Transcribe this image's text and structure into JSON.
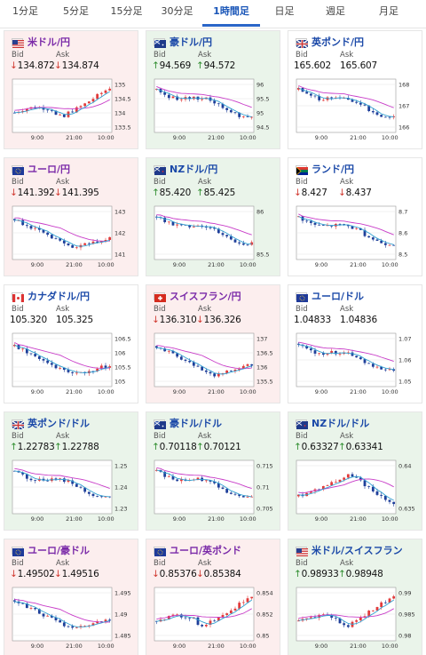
{
  "tabs": [
    "1分足",
    "5分足",
    "15分足",
    "30分足",
    "1時間足",
    "日足",
    "週足",
    "月足"
  ],
  "active_tab": 4,
  "labels": {
    "bid": "Bid",
    "ask": "Ask"
  },
  "colors": {
    "down_bg": "#fceeee",
    "up_bg": "#eaf4ea",
    "candle_up": "#e23b3b",
    "candle_down": "#1f3f9a",
    "ma1": "#c83cc8",
    "ma2": "#30a0d0",
    "price_down": "#d0372e",
    "price_up": "#2c8c2c"
  },
  "cards": [
    {
      "name": "米ドル/円",
      "flag": "us-jp",
      "trend": "down",
      "bid": "134.872",
      "ask": "134.874",
      "dir": "down",
      "yticks": [
        "135",
        "134.5",
        "134",
        "133.5"
      ],
      "xticks": [
        "9:00",
        "21:00",
        "10:00"
      ],
      "shape": "rise"
    },
    {
      "name": "豪ドル/円",
      "flag": "au-jp",
      "trend": "up",
      "bid": "94.569",
      "ask": "94.572",
      "dir": "up",
      "yticks": [
        "96",
        "95.5",
        "95",
        "94.5"
      ],
      "xticks": [
        "9:00",
        "21:00",
        "10:00"
      ],
      "shape": "fall"
    },
    {
      "name": "英ポンド/円",
      "flag": "gb-jp",
      "trend": "flat",
      "bid": "165.602",
      "ask": "165.607",
      "dir": "none",
      "yticks": [
        "168",
        "167",
        "166"
      ],
      "xticks": [
        "9:00",
        "21:00",
        "10:00"
      ],
      "shape": "fall"
    },
    {
      "name": "ユーロ/円",
      "flag": "eu-jp",
      "trend": "down",
      "bid": "141.392",
      "ask": "141.395",
      "dir": "down",
      "yticks": [
        "143",
        "142",
        "141"
      ],
      "xticks": [
        "9:00",
        "21:00",
        "10:00"
      ],
      "shape": "dip"
    },
    {
      "name": "NZドル/円",
      "flag": "nz-jp",
      "trend": "up",
      "bid": "85.420",
      "ask": "85.425",
      "dir": "up",
      "yticks": [
        "86",
        "85.5"
      ],
      "xticks": [
        "9:00",
        "21:00",
        "10:00"
      ],
      "shape": "fall"
    },
    {
      "name": "ランド/円",
      "flag": "za-jp",
      "trend": "flat",
      "bid": "8.427",
      "ask": "8.437",
      "dir": "down",
      "yticks": [
        "8.7",
        "8.6",
        "8.5"
      ],
      "xticks": [
        "9:00",
        "21:00",
        "10:00"
      ],
      "shape": "fall"
    },
    {
      "name": "カナダドル/円",
      "flag": "ca-jp",
      "trend": "flat",
      "bid": "105.320",
      "ask": "105.325",
      "dir": "none",
      "yticks": [
        "106.5",
        "106",
        "105.5",
        "105"
      ],
      "xticks": [
        "9:00",
        "21:00",
        "10:00"
      ],
      "shape": "dip"
    },
    {
      "name": "スイスフラン/円",
      "flag": "ch-jp",
      "trend": "down",
      "bid": "136.310",
      "ask": "136.326",
      "dir": "down",
      "yticks": [
        "137",
        "136.5",
        "136",
        "135.5"
      ],
      "xticks": [
        "9:00",
        "21:00",
        "10:00"
      ],
      "shape": "dip"
    },
    {
      "name": "ユーロ/ドル",
      "flag": "eu-us",
      "trend": "flat",
      "bid": "1.04833",
      "ask": "1.04836",
      "dir": "none",
      "yticks": [
        "1.07",
        "1.06",
        "1.05"
      ],
      "xticks": [
        "9:00",
        "21:00",
        "10:00"
      ],
      "shape": "fall"
    },
    {
      "name": "英ポンド/ドル",
      "flag": "gb-us",
      "trend": "up",
      "bid": "1.22783",
      "ask": "1.22788",
      "dir": "up",
      "yticks": [
        "1.25",
        "1.24",
        "1.23"
      ],
      "xticks": [
        "9:00",
        "21:00",
        "10:00"
      ],
      "shape": "fall"
    },
    {
      "name": "豪ドル/ドル",
      "flag": "au-us",
      "trend": "up",
      "bid": "0.70118",
      "ask": "0.70121",
      "dir": "up",
      "yticks": [
        "0.715",
        "0.71",
        "0.705"
      ],
      "xticks": [
        "9:00",
        "21:00",
        "10:00"
      ],
      "shape": "fall"
    },
    {
      "name": "NZドル/ドル",
      "flag": "nz-us",
      "trend": "up",
      "bid": "0.63327",
      "ask": "0.63341",
      "dir": "up",
      "yticks": [
        "0.64",
        "0.635"
      ],
      "xticks": [
        "9:00",
        "21:00",
        "10:00"
      ],
      "shape": "hump"
    },
    {
      "name": "ユーロ/豪ドル",
      "flag": "eu-au",
      "trend": "down",
      "bid": "1.49502",
      "ask": "1.49516",
      "dir": "down",
      "yticks": [
        "1.495",
        "1.49",
        "1.485"
      ],
      "xticks": [
        "9:00",
        "21:00",
        "10:00"
      ],
      "shape": "dip"
    },
    {
      "name": "ユーロ/英ポンド",
      "flag": "eu-gb",
      "trend": "down",
      "bid": "0.85376",
      "ask": "0.85384",
      "dir": "down",
      "yticks": [
        "0.854",
        "0.852",
        "0.85"
      ],
      "xticks": [
        "9:00",
        "21:00",
        "10:00"
      ],
      "shape": "rise"
    },
    {
      "name": "米ドル/スイスフラン",
      "flag": "us-ch",
      "trend": "up",
      "bid": "0.98933",
      "ask": "0.98948",
      "dir": "up",
      "yticks": [
        "0.99",
        "0.985",
        "0.98"
      ],
      "xticks": [
        "9:00",
        "21:00",
        "10:00"
      ],
      "shape": "rise"
    }
  ]
}
